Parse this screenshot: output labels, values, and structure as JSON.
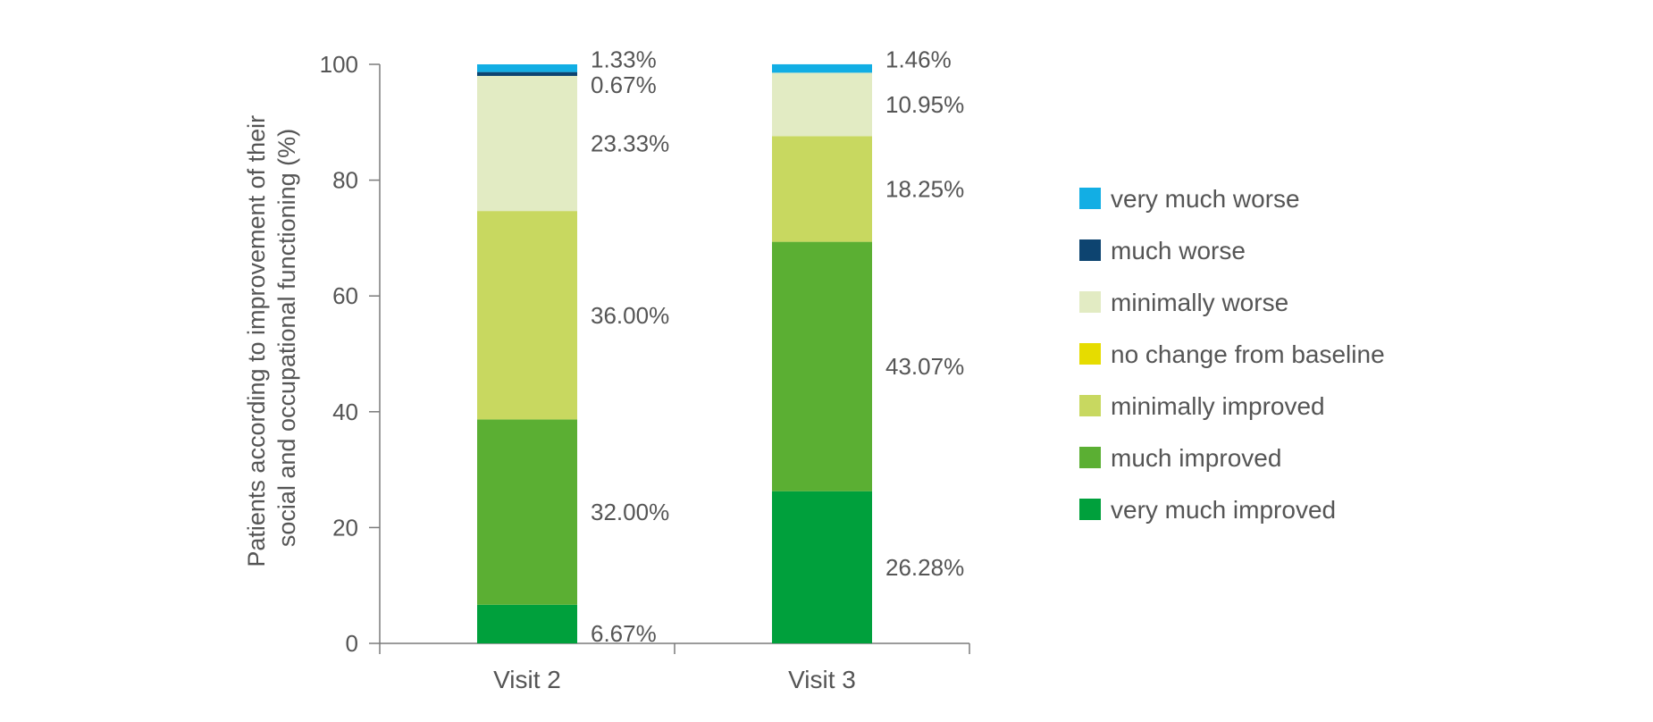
{
  "chart_data": {
    "type": "bar",
    "stacked": true,
    "categories": [
      "Visit 2",
      "Visit 3"
    ],
    "ylabel_lines": [
      "Patients according to improvement of their",
      "social and occupational functioning (%)"
    ],
    "ylim": [
      0,
      100
    ],
    "yticks": [
      "0",
      "20",
      "40",
      "60",
      "80",
      "100"
    ],
    "grid": false,
    "legend_position": "right",
    "series": [
      {
        "name": "very much improved",
        "color": "#00A03C",
        "values": [
          6.67,
          26.28
        ],
        "labels": [
          "6.67%",
          "26.28%"
        ]
      },
      {
        "name": "much improved",
        "color": "#5BAF33",
        "values": [
          32.0,
          43.07
        ],
        "labels": [
          "32.00%",
          "43.07%"
        ]
      },
      {
        "name": "minimally improved",
        "color": "#C8D860",
        "values": [
          36.0,
          18.25
        ],
        "labels": [
          "36.00%",
          "18.25%"
        ]
      },
      {
        "name": "no change from baseline",
        "color": "#E6DC00",
        "values": [
          0,
          0
        ],
        "labels": [
          "",
          ""
        ]
      },
      {
        "name": "minimally worse",
        "color": "#E2EBC3",
        "values": [
          23.33,
          10.95
        ],
        "labels": [
          "23.33%",
          "10.95%"
        ]
      },
      {
        "name": "much worse",
        "color": "#0D4470",
        "values": [
          0.67,
          0
        ],
        "labels": [
          "0.67%",
          ""
        ]
      },
      {
        "name": "very much worse",
        "color": "#12AEE4",
        "values": [
          1.33,
          1.46
        ],
        "labels": [
          "1.33%",
          "1.46%"
        ]
      }
    ],
    "legend_order": [
      "very much worse",
      "much worse",
      "minimally worse",
      "no change from baseline",
      "minimally improved",
      "much improved",
      "very much improved"
    ]
  }
}
